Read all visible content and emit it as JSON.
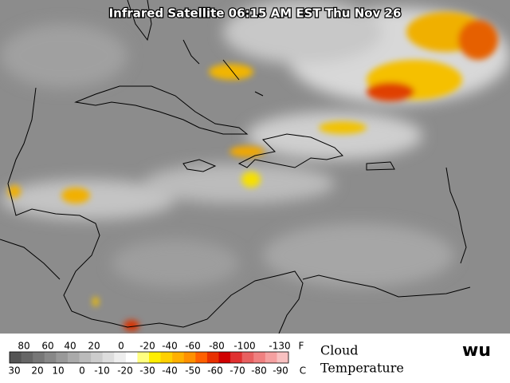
{
  "title": "Infrared Satellite 06:15 AM EST Thu Nov 26",
  "legend": {
    "fahrenheit": [
      80,
      60,
      40,
      20,
      0,
      -20,
      -40,
      -60,
      -80,
      -100,
      -130
    ],
    "fahrenheit_unit": "F",
    "celsius": [
      30,
      20,
      10,
      0,
      -10,
      -20,
      -30,
      -40,
      -50,
      -60,
      -70,
      -80,
      -90
    ],
    "celsius_unit": "C",
    "caption_line1": "Cloud",
    "caption_line2": "Temperature"
  },
  "logo": "wu"
}
